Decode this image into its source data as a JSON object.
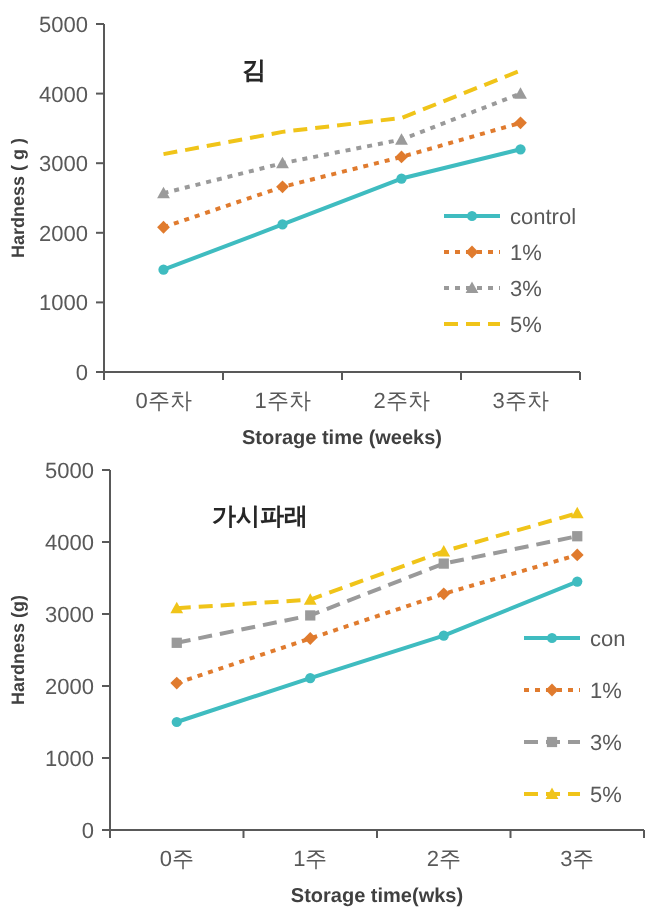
{
  "chart_data": [
    {
      "type": "line",
      "title": "김",
      "xlabel": "Storage time (weeks)",
      "ylabel": "Hardness ( g )",
      "categories": [
        "0주차",
        "1주차",
        "2주차",
        "3주차"
      ],
      "ylim": [
        0,
        5000
      ],
      "yticks": [
        0,
        1000,
        2000,
        3000,
        4000,
        5000
      ],
      "grid": false,
      "legend": "right",
      "series": [
        {
          "name": "control",
          "color": "#3fbcc0",
          "values": [
            1470,
            2120,
            2780,
            3200
          ],
          "marker": "circle",
          "line_style": "solid"
        },
        {
          "name": "1%",
          "color": "#e07b2e",
          "values": [
            2080,
            2660,
            3090,
            3580
          ],
          "marker": "diamond",
          "line_style": "dotted"
        },
        {
          "name": "3%",
          "color": "#9a9a9a",
          "values": [
            2570,
            3000,
            3340,
            4000
          ],
          "marker": "triangle",
          "line_style": "dotted"
        },
        {
          "name": "5%",
          "color": "#f0c419",
          "values": [
            3130,
            3450,
            3650,
            4330
          ],
          "marker": "none",
          "line_style": "dashed"
        }
      ]
    },
    {
      "type": "line",
      "title": "가시파래",
      "xlabel": "Storage time(wks)",
      "ylabel": "Hardness (g)",
      "categories": [
        "0주",
        "1주",
        "2주",
        "3주"
      ],
      "ylim": [
        0,
        5000
      ],
      "yticks": [
        0,
        1000,
        2000,
        3000,
        4000,
        5000
      ],
      "grid": false,
      "legend": "right",
      "series": [
        {
          "name": "con",
          "color": "#3fbcc0",
          "values": [
            1500,
            2110,
            2700,
            3450
          ],
          "marker": "circle",
          "line_style": "solid"
        },
        {
          "name": "1%",
          "color": "#e07b2e",
          "values": [
            2040,
            2660,
            3280,
            3820
          ],
          "marker": "diamond",
          "line_style": "dotted"
        },
        {
          "name": "3%",
          "color": "#9a9a9a",
          "values": [
            2600,
            2980,
            3700,
            4080
          ],
          "marker": "square",
          "line_style": "dashed"
        },
        {
          "name": "5%",
          "color": "#f0c419",
          "values": [
            3080,
            3200,
            3870,
            4400
          ],
          "marker": "triangle",
          "line_style": "dashed"
        }
      ]
    }
  ]
}
